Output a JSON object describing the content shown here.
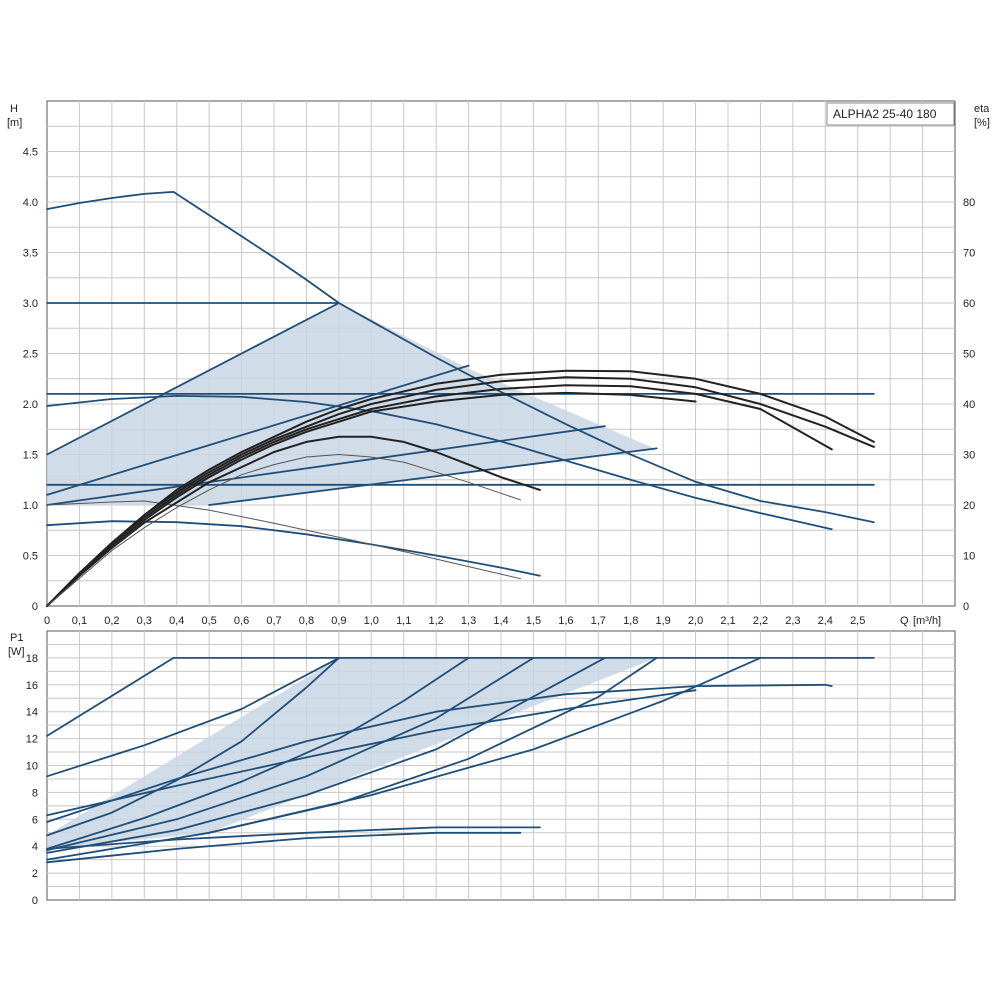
{
  "colors": {
    "curve": "#1f4e79",
    "curve_dark": "#222222",
    "curve_thin": "#555555",
    "fill": "#c8d6e3",
    "grid": "#c8c8c8",
    "frame": "#555555"
  },
  "chart_data": [
    {
      "type": "line",
      "panel": "head",
      "title": "ALPHA2 25-40 180",
      "ylabel": "H",
      "yunit": "[m]",
      "y2label": "eta",
      "y2unit": "[%]",
      "xlabel": "Q",
      "xunit": "[m³/h]",
      "xlim": [
        0,
        2.8
      ],
      "ylim": [
        0,
        5
      ],
      "y2lim": [
        0,
        100
      ],
      "grid": true,
      "xticks": [
        "0",
        "0,1",
        "0,2",
        "0,3",
        "0,4",
        "0,5",
        "0,6",
        "0,7",
        "0,8",
        "0,9",
        "1,0",
        "1,1",
        "1,2",
        "1,3",
        "1,4",
        "1,5",
        "1,6",
        "1,7",
        "1,8",
        "1,9",
        "2,0",
        "2,1",
        "2,2",
        "2,3",
        "2,4",
        "2,5"
      ],
      "yticks": [
        "0",
        "0.5",
        "1.0",
        "1.5",
        "2.0",
        "2.5",
        "3.0",
        "3.5",
        "4.0",
        "4.5"
      ],
      "y2ticks": [
        "0",
        "10",
        "20",
        "30",
        "40",
        "50",
        "60",
        "70",
        "80"
      ],
      "shaded_region": {
        "x": [
          0,
          0.9,
          1.3,
          1.88,
          0.5,
          0
        ],
        "y": [
          1.5,
          3.0,
          2.35,
          1.55,
          1.0,
          1.0
        ]
      },
      "series": [
        {
          "style": "curve",
          "x": [
            0,
            0.1,
            0.2,
            0.3,
            0.39,
            0.5,
            0.6,
            0.7,
            0.8,
            0.9,
            1.0,
            1.2,
            1.4,
            1.6,
            1.8,
            2.0,
            2.2,
            2.4,
            2.55
          ],
          "y": [
            3.93,
            3.99,
            4.04,
            4.08,
            4.1,
            3.87,
            3.66,
            3.45,
            3.23,
            3.0,
            2.82,
            2.46,
            2.12,
            1.8,
            1.5,
            1.23,
            1.04,
            0.93,
            0.83
          ]
        },
        {
          "style": "curve",
          "x": [
            0,
            0.9
          ],
          "y": [
            3.0,
            3.0
          ]
        },
        {
          "style": "curve",
          "x": [
            0,
            0.9
          ],
          "y": [
            1.5,
            3.0
          ]
        },
        {
          "style": "curve",
          "x": [
            0,
            2.55
          ],
          "y": [
            2.1,
            2.1
          ]
        },
        {
          "style": "curve",
          "x": [
            0,
            1.3
          ],
          "y": [
            1.1,
            2.38
          ]
        },
        {
          "style": "curve",
          "x": [
            0,
            1.72
          ],
          "y": [
            1.0,
            1.78
          ]
        },
        {
          "style": "curve",
          "x": [
            0.5,
            1.88
          ],
          "y": [
            1.0,
            1.56
          ]
        },
        {
          "style": "curve",
          "x": [
            0,
            2.55
          ],
          "y": [
            1.2,
            1.2
          ]
        },
        {
          "style": "curve",
          "x": [
            0,
            0.2,
            0.4,
            0.6,
            0.8,
            1.0,
            1.2,
            1.4,
            1.6,
            1.8,
            2.0,
            2.2,
            2.42
          ],
          "y": [
            1.98,
            2.05,
            2.08,
            2.07,
            2.02,
            1.93,
            1.8,
            1.63,
            1.44,
            1.25,
            1.07,
            0.92,
            0.76
          ]
        },
        {
          "style": "curve",
          "x": [
            0,
            0.2,
            0.4,
            0.6,
            0.8,
            1.0,
            1.2,
            1.4,
            1.52
          ],
          "y": [
            0.8,
            0.84,
            0.83,
            0.79,
            0.71,
            0.61,
            0.5,
            0.38,
            0.3
          ]
        },
        {
          "style": "curve_thin",
          "x": [
            0,
            0.2,
            0.3,
            0.5,
            0.7,
            0.9,
            1.1,
            1.3,
            1.46
          ],
          "y": [
            1.0,
            1.03,
            1.04,
            0.95,
            0.82,
            0.68,
            0.54,
            0.39,
            0.27
          ]
        },
        {
          "style": "curve_dark",
          "x": [
            0,
            0.1,
            0.2,
            0.3,
            0.4,
            0.5,
            0.6,
            0.7,
            0.8,
            0.9,
            1.0,
            1.2,
            1.4,
            1.6,
            1.8,
            2.0,
            2.2,
            2.4,
            2.55
          ],
          "y2": [
            0,
            6.5,
            12.5,
            18,
            23,
            27,
            30.5,
            33.5,
            36.5,
            39,
            41,
            44,
            45.8,
            46.6,
            46.5,
            45,
            42,
            37.5,
            32.5
          ]
        },
        {
          "style": "curve_dark",
          "x": [
            0,
            0.1,
            0.2,
            0.3,
            0.4,
            0.5,
            0.6,
            0.7,
            0.8,
            0.9,
            1.0,
            1.2,
            1.4,
            1.6,
            1.8,
            2.0,
            2.2,
            2.4,
            2.55
          ],
          "y2": [
            0,
            6.5,
            12.5,
            18,
            22.5,
            26.5,
            30,
            33,
            35.5,
            38,
            40,
            42.8,
            44.5,
            45.3,
            45,
            43.3,
            40,
            35.5,
            31.5
          ]
        },
        {
          "style": "curve_dark",
          "x": [
            0,
            0.1,
            0.2,
            0.3,
            0.4,
            0.5,
            0.6,
            0.7,
            0.8,
            0.9,
            1.0,
            1.2,
            1.4,
            1.6,
            1.8,
            2.0,
            2.2,
            2.42
          ],
          "y2": [
            0,
            6.5,
            12.5,
            17.5,
            22,
            26,
            29.5,
            32.5,
            35,
            37,
            39,
            41.5,
            43,
            43.7,
            43.5,
            42,
            39,
            31
          ]
        },
        {
          "style": "curve_dark",
          "x": [
            0,
            0.1,
            0.2,
            0.3,
            0.4,
            0.5,
            0.6,
            0.7,
            0.8,
            0.9,
            1.0,
            1.2,
            1.4,
            1.6,
            1.8,
            2.0
          ],
          "y2": [
            0,
            6,
            12,
            17,
            21.5,
            25.5,
            29,
            32,
            34.5,
            36.5,
            38.5,
            40.5,
            41.8,
            42.2,
            41.8,
            40.5
          ]
        },
        {
          "style": "curve_dark",
          "x": [
            0,
            0.1,
            0.2,
            0.3,
            0.4,
            0.5,
            0.6,
            0.7,
            0.8,
            0.9,
            1.0,
            1.1,
            1.2,
            1.3,
            1.4,
            1.52
          ],
          "y2": [
            0,
            6,
            11.5,
            16.5,
            20.5,
            24.5,
            27.5,
            30.5,
            32.5,
            33.5,
            33.5,
            32.5,
            30.5,
            28,
            25.5,
            23
          ]
        },
        {
          "style": "curve_thin",
          "x": [
            0,
            0.1,
            0.2,
            0.3,
            0.4,
            0.5,
            0.6,
            0.7,
            0.8,
            0.9,
            1.0,
            1.1,
            1.2,
            1.3,
            1.46
          ],
          "y2": [
            0,
            5.5,
            11,
            15.5,
            19.5,
            23,
            26,
            28,
            29.5,
            30,
            29.5,
            28.5,
            26.5,
            24.5,
            21
          ]
        }
      ]
    },
    {
      "type": "line",
      "panel": "power",
      "ylabel": "P1",
      "yunit": "[W]",
      "xlim": [
        0,
        2.8
      ],
      "ylim": [
        0,
        20
      ],
      "grid": true,
      "yticks": [
        "0",
        "2",
        "4",
        "6",
        "8",
        "10",
        "12",
        "14",
        "16",
        "18"
      ],
      "shaded_region": {
        "x": [
          0,
          0.9,
          1.88,
          0.5,
          0
        ],
        "y": [
          4.8,
          18,
          18,
          5.0,
          3.8
        ]
      },
      "series": [
        {
          "style": "curve",
          "x": [
            0,
            0.39,
            2.55
          ],
          "y": [
            12.2,
            18,
            18
          ]
        },
        {
          "style": "curve",
          "x": [
            0,
            0.3,
            0.6,
            0.9
          ],
          "y": [
            9.2,
            11.5,
            14.2,
            18
          ]
        },
        {
          "style": "curve",
          "x": [
            0,
            0.2,
            0.4,
            0.6,
            0.8,
            0.9
          ],
          "y": [
            4.8,
            6.5,
            8.9,
            11.8,
            15.8,
            18
          ]
        },
        {
          "style": "curve",
          "x": [
            0,
            0.3,
            0.6,
            0.9,
            1.1,
            1.3
          ],
          "y": [
            3.8,
            6.1,
            8.8,
            12.0,
            14.8,
            18
          ]
        },
        {
          "style": "curve",
          "x": [
            0,
            0.4,
            0.8,
            1.2,
            1.5
          ],
          "y": [
            3.7,
            6.0,
            9.2,
            13.5,
            18
          ]
        },
        {
          "style": "curve",
          "x": [
            0,
            0.4,
            0.8,
            1.2,
            1.72
          ],
          "y": [
            3.5,
            5.2,
            7.8,
            11.2,
            18
          ]
        },
        {
          "style": "curve",
          "x": [
            0.5,
            0.9,
            1.3,
            1.7,
            1.88
          ],
          "y": [
            5.0,
            7.2,
            10.5,
            15.1,
            18
          ]
        },
        {
          "style": "curve",
          "x": [
            0,
            0.5,
            1.0,
            1.5,
            1.9,
            2.2
          ],
          "y": [
            3.0,
            5.0,
            7.8,
            11.2,
            14.8,
            18
          ]
        },
        {
          "style": "curve",
          "x": [
            0,
            0.4,
            0.8,
            1.2,
            1.6,
            2.0,
            2.4,
            2.42
          ],
          "y": [
            5.8,
            9.0,
            11.8,
            14.0,
            15.3,
            15.9,
            16.0,
            15.9
          ]
        },
        {
          "style": "curve",
          "x": [
            0,
            0.4,
            0.8,
            1.2,
            1.52
          ],
          "y": [
            3.8,
            4.5,
            5.0,
            5.4,
            5.4
          ]
        },
        {
          "style": "curve",
          "x": [
            0,
            0.4,
            0.8,
            1.2,
            1.46
          ],
          "y": [
            2.8,
            3.8,
            4.6,
            5.0,
            5.0
          ]
        },
        {
          "style": "curve",
          "x": [
            0,
            0.4,
            0.8,
            1.2,
            1.6,
            2.0
          ],
          "y": [
            6.3,
            8.5,
            10.6,
            12.6,
            14.2,
            15.6
          ]
        }
      ]
    }
  ]
}
